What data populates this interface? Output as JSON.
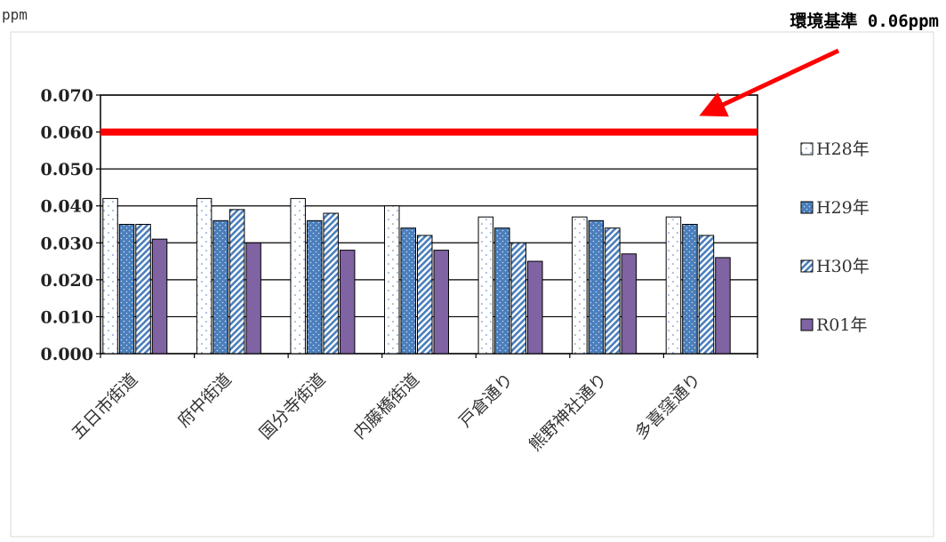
{
  "chart_data": {
    "type": "bar",
    "unit_label": "ppm",
    "annotation": "環境基準 0.06ppm",
    "standard_line": 0.06,
    "ylim": [
      0,
      0.07
    ],
    "yticks": [
      "0.000",
      "0.010",
      "0.020",
      "0.030",
      "0.040",
      "0.050",
      "0.060",
      "0.070"
    ],
    "ytick_values": [
      0,
      0.01,
      0.02,
      0.03,
      0.04,
      0.05,
      0.06,
      0.07
    ],
    "categories": [
      "五日市街道",
      "府中街道",
      "国分寺街道",
      "内藤橋街道",
      "戸倉通り",
      "熊野神社通り",
      "多喜窪通り"
    ],
    "series": [
      {
        "name": "H28年",
        "values": [
          0.042,
          0.042,
          0.042,
          0.04,
          0.037,
          0.037,
          0.037
        ],
        "color": "#ffffff",
        "pattern": "dots-white"
      },
      {
        "name": "H29年",
        "values": [
          0.035,
          0.036,
          0.036,
          0.034,
          0.034,
          0.036,
          0.035
        ],
        "color": "#4a7ebb",
        "pattern": "dots-blue"
      },
      {
        "name": "H30年",
        "values": [
          0.035,
          0.039,
          0.038,
          0.032,
          0.03,
          0.034,
          0.032
        ],
        "color": "#4a7ebb",
        "pattern": "diag-blue"
      },
      {
        "name": "R01年",
        "values": [
          0.031,
          0.03,
          0.028,
          0.028,
          0.025,
          0.027,
          0.026
        ],
        "color": "#7f63a2",
        "pattern": "solid"
      }
    ],
    "grid": true,
    "legend_position": "right",
    "standard_line_color": "#ff0000",
    "arrow_color": "#ff0000"
  }
}
